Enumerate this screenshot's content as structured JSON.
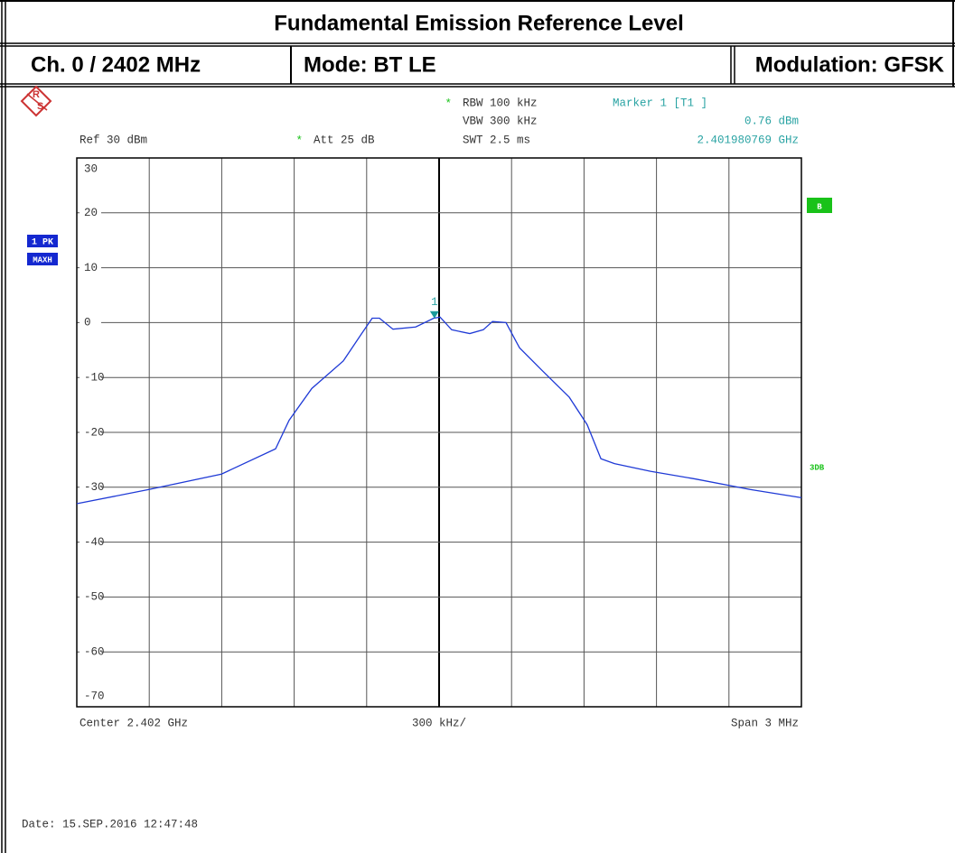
{
  "report": {
    "title": "Fundamental Emission Reference Level",
    "channel": "Ch. 0 / 2402 MHz",
    "mode": "Mode: BT LE",
    "modulation": "Modulation: GFSK"
  },
  "instrument": {
    "logo_r": "R",
    "logo_s": "S",
    "rbw_star": "*",
    "rbw": "RBW 100 kHz",
    "vbw": "VBW 300 kHz",
    "swt": "SWT 2.5 ms",
    "ref": "Ref 30 dBm",
    "att_star": "*",
    "att": "Att 25 dB",
    "trace_mode": "1 PK",
    "trace_hold": "MAXH",
    "side_b": "B",
    "side_3db": "3DB",
    "center": "Center 2.402 GHz",
    "per_div": "300 kHz/",
    "span": "Span 3 MHz",
    "date": "Date: 15.SEP.2016 12:47:48"
  },
  "chart_data": {
    "type": "line",
    "x": [
      2400.5,
      2400.799,
      2401.099,
      2401.323,
      2401.379,
      2401.473,
      2401.603,
      2401.678,
      2401.723,
      2401.753,
      2401.809,
      2401.903,
      2401.978,
      2402.004,
      2402.052,
      2402.127,
      2402.183,
      2402.221,
      2402.277,
      2402.333,
      2402.426,
      2402.539,
      2402.613,
      2402.67,
      2402.726,
      2402.875,
      2403.062,
      2403.287,
      2403.5
    ],
    "series": [
      {
        "color": "#1f3ad6",
        "values": [
          -33,
          -30.4,
          -27.6,
          -23,
          -17.8,
          -12,
          -7,
          -2.1,
          0.8,
          0.8,
          -1.2,
          -0.8,
          0.8,
          1.0,
          -1.3,
          -2,
          -1.3,
          0.2,
          0,
          -4.6,
          -8.7,
          -13.6,
          -18.6,
          -24.8,
          -25.7,
          -27.1,
          -28.5,
          -30.4,
          -31.9
        ]
      }
    ],
    "xlim": [
      2400.5,
      2403.5
    ],
    "xticks": [
      2400.5,
      2400.8,
      2401.1,
      2401.4,
      2401.7,
      2402.0,
      2402.3,
      2402.6,
      2402.9,
      2403.2,
      2403.5
    ],
    "ylim": [
      -70,
      30
    ],
    "yticks": [
      30,
      20,
      10,
      0,
      -10,
      -20,
      -30,
      -40,
      -50,
      -60,
      -70
    ],
    "grid": true,
    "marker": {
      "name": "Marker 1 [T1 ]",
      "level": "0.76 dBm",
      "frequency": "2.401980769 GHz",
      "number": "1",
      "x": 2401.980769,
      "y": 0.76
    }
  }
}
